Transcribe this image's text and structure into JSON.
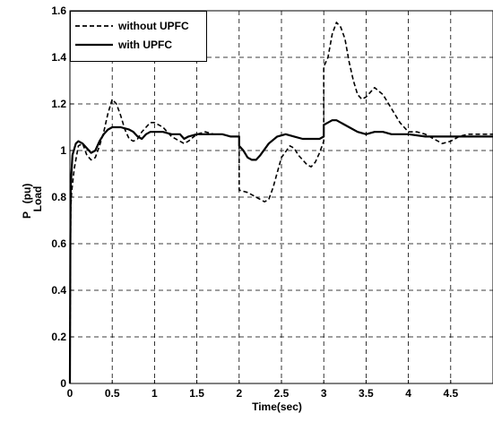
{
  "chart_data": {
    "type": "line",
    "title": "",
    "xlabel": "Time(sec)",
    "ylabel_main": "P",
    "ylabel_sub": "Load",
    "ylabel_unit": "(pu)",
    "xlim": [
      0,
      5
    ],
    "ylim": [
      0,
      1.6
    ],
    "xticks": [
      0,
      0.5,
      1,
      1.5,
      2,
      2.5,
      3,
      3.5,
      4,
      4.5
    ],
    "xtick_labels": [
      "0",
      "0.5",
      "1",
      "1.5",
      "2",
      "2.5",
      "3",
      "3.5",
      "4",
      "4.5"
    ],
    "yticks": [
      0,
      0.2,
      0.4,
      0.6,
      0.8,
      1,
      1.2,
      1.4,
      1.6
    ],
    "ytick_labels": [
      "0",
      "0.2",
      "0.4",
      "0.6",
      "0.8",
      "1",
      "1.2",
      "1.4",
      "1.6"
    ],
    "grid": true,
    "legend_position": "top-left",
    "series": [
      {
        "name": "without UPFC",
        "style": "dashed",
        "color": "#000000",
        "points": [
          [
            0,
            0
          ],
          [
            0.005,
            0.5
          ],
          [
            0.01,
            0.75
          ],
          [
            0.02,
            0.82
          ],
          [
            0.05,
            0.92
          ],
          [
            0.1,
            1.02
          ],
          [
            0.15,
            1.03
          ],
          [
            0.2,
            0.98
          ],
          [
            0.25,
            0.96
          ],
          [
            0.3,
            0.97
          ],
          [
            0.35,
            1.02
          ],
          [
            0.4,
            1.08
          ],
          [
            0.45,
            1.16
          ],
          [
            0.5,
            1.22
          ],
          [
            0.55,
            1.2
          ],
          [
            0.6,
            1.15
          ],
          [
            0.65,
            1.09
          ],
          [
            0.7,
            1.05
          ],
          [
            0.75,
            1.04
          ],
          [
            0.8,
            1.05
          ],
          [
            0.85,
            1.08
          ],
          [
            0.9,
            1.1
          ],
          [
            0.95,
            1.12
          ],
          [
            1.0,
            1.12
          ],
          [
            1.05,
            1.11
          ],
          [
            1.1,
            1.1
          ],
          [
            1.2,
            1.06
          ],
          [
            1.3,
            1.04
          ],
          [
            1.35,
            1.03
          ],
          [
            1.4,
            1.04
          ],
          [
            1.5,
            1.07
          ],
          [
            1.6,
            1.08
          ],
          [
            1.7,
            1.07
          ],
          [
            1.8,
            1.07
          ],
          [
            1.9,
            1.06
          ],
          [
            2.0,
            1.06
          ],
          [
            2.0,
            0.83
          ],
          [
            2.1,
            0.82
          ],
          [
            2.2,
            0.8
          ],
          [
            2.3,
            0.78
          ],
          [
            2.35,
            0.79
          ],
          [
            2.4,
            0.84
          ],
          [
            2.5,
            0.97
          ],
          [
            2.6,
            1.02
          ],
          [
            2.65,
            1.01
          ],
          [
            2.7,
            0.98
          ],
          [
            2.8,
            0.94
          ],
          [
            2.85,
            0.93
          ],
          [
            2.9,
            0.95
          ],
          [
            2.95,
            0.99
          ],
          [
            3.0,
            1.04
          ],
          [
            3.0,
            1.36
          ],
          [
            3.05,
            1.4
          ],
          [
            3.1,
            1.5
          ],
          [
            3.15,
            1.55
          ],
          [
            3.2,
            1.53
          ],
          [
            3.25,
            1.48
          ],
          [
            3.3,
            1.38
          ],
          [
            3.35,
            1.3
          ],
          [
            3.4,
            1.24
          ],
          [
            3.45,
            1.22
          ],
          [
            3.5,
            1.23
          ],
          [
            3.6,
            1.27
          ],
          [
            3.7,
            1.24
          ],
          [
            3.8,
            1.18
          ],
          [
            3.9,
            1.12
          ],
          [
            4.0,
            1.08
          ],
          [
            4.1,
            1.08
          ],
          [
            4.2,
            1.07
          ],
          [
            4.3,
            1.05
          ],
          [
            4.4,
            1.03
          ],
          [
            4.5,
            1.04
          ],
          [
            4.6,
            1.06
          ],
          [
            4.7,
            1.07
          ],
          [
            4.8,
            1.07
          ],
          [
            4.9,
            1.07
          ],
          [
            5.0,
            1.07
          ]
        ]
      },
      {
        "name": "with UPFC",
        "style": "solid",
        "color": "#000000",
        "points": [
          [
            0,
            0
          ],
          [
            0.005,
            0.6
          ],
          [
            0.01,
            0.85
          ],
          [
            0.03,
            0.98
          ],
          [
            0.07,
            1.03
          ],
          [
            0.1,
            1.04
          ],
          [
            0.15,
            1.03
          ],
          [
            0.2,
            1.01
          ],
          [
            0.25,
            0.99
          ],
          [
            0.3,
            1.0
          ],
          [
            0.35,
            1.04
          ],
          [
            0.4,
            1.07
          ],
          [
            0.45,
            1.09
          ],
          [
            0.5,
            1.1
          ],
          [
            0.6,
            1.1
          ],
          [
            0.7,
            1.09
          ],
          [
            0.75,
            1.08
          ],
          [
            0.8,
            1.06
          ],
          [
            0.85,
            1.05
          ],
          [
            0.9,
            1.07
          ],
          [
            0.95,
            1.08
          ],
          [
            1.0,
            1.08
          ],
          [
            1.1,
            1.08
          ],
          [
            1.2,
            1.07
          ],
          [
            1.3,
            1.07
          ],
          [
            1.35,
            1.05
          ],
          [
            1.4,
            1.06
          ],
          [
            1.5,
            1.07
          ],
          [
            1.6,
            1.07
          ],
          [
            1.7,
            1.07
          ],
          [
            1.8,
            1.07
          ],
          [
            1.9,
            1.06
          ],
          [
            2.0,
            1.06
          ],
          [
            2.0,
            1.02
          ],
          [
            2.05,
            1.0
          ],
          [
            2.1,
            0.97
          ],
          [
            2.15,
            0.96
          ],
          [
            2.2,
            0.96
          ],
          [
            2.25,
            0.98
          ],
          [
            2.35,
            1.03
          ],
          [
            2.45,
            1.06
          ],
          [
            2.55,
            1.07
          ],
          [
            2.65,
            1.06
          ],
          [
            2.75,
            1.05
          ],
          [
            2.85,
            1.05
          ],
          [
            2.95,
            1.05
          ],
          [
            3.0,
            1.06
          ],
          [
            3.0,
            1.11
          ],
          [
            3.05,
            1.12
          ],
          [
            3.1,
            1.13
          ],
          [
            3.15,
            1.13
          ],
          [
            3.2,
            1.12
          ],
          [
            3.3,
            1.1
          ],
          [
            3.4,
            1.08
          ],
          [
            3.5,
            1.07
          ],
          [
            3.6,
            1.08
          ],
          [
            3.7,
            1.08
          ],
          [
            3.8,
            1.07
          ],
          [
            3.9,
            1.07
          ],
          [
            4.0,
            1.07
          ],
          [
            4.2,
            1.06
          ],
          [
            4.4,
            1.06
          ],
          [
            4.6,
            1.06
          ],
          [
            4.8,
            1.06
          ],
          [
            5.0,
            1.06
          ]
        ]
      }
    ]
  }
}
